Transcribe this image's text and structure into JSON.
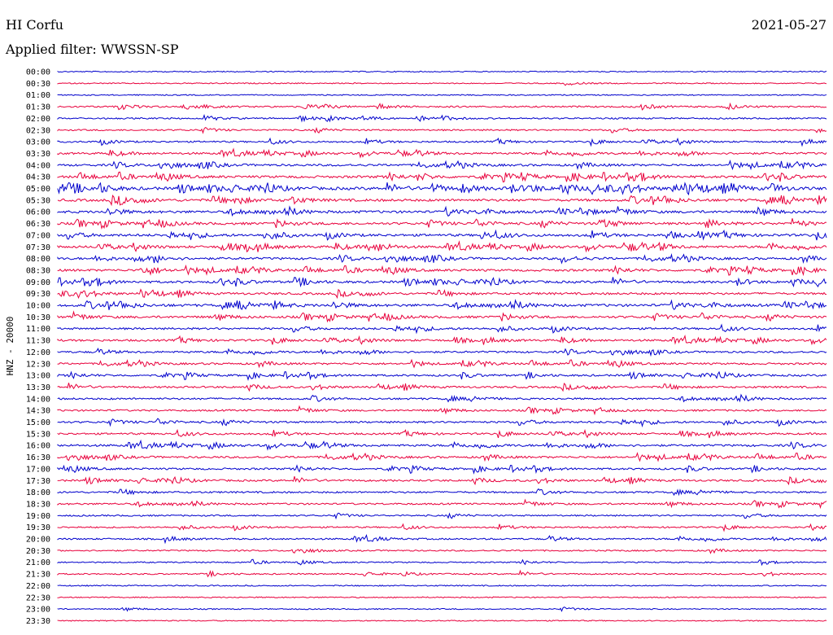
{
  "header": {
    "station": "HI Corfu",
    "date": "2021-05-27",
    "filter_label": "Applied filter: WWSSN-SP"
  },
  "chart_data": {
    "type": "line",
    "title": "HI Corfu",
    "subtitle": "Applied filter: WWSSN-SP",
    "ylabel": "HNZ - 20000",
    "xlabel": "",
    "date": "2021-05-27",
    "row_interval_minutes": 30,
    "row_labels": [
      "00:00",
      "00:30",
      "01:00",
      "01:30",
      "02:00",
      "02:30",
      "03:00",
      "03:30",
      "04:00",
      "04:30",
      "05:00",
      "05:30",
      "06:00",
      "06:30",
      "07:00",
      "07:30",
      "08:00",
      "08:30",
      "09:00",
      "09:30",
      "10:00",
      "10:30",
      "11:00",
      "11:30",
      "12:00",
      "12:30",
      "13:00",
      "13:30",
      "14:00",
      "14:30",
      "15:00",
      "15:30",
      "16:00",
      "16:30",
      "17:00",
      "17:30",
      "18:00",
      "18:30",
      "19:00",
      "19:30",
      "20:00",
      "20:30",
      "21:00",
      "21:30",
      "22:00",
      "22:30",
      "23:00",
      "23:30"
    ],
    "colors": [
      "#0000cc",
      "#e8003c"
    ],
    "activity": [
      0.02,
      0.03,
      0.03,
      0.25,
      0.18,
      0.2,
      0.25,
      0.4,
      0.45,
      0.55,
      0.75,
      0.6,
      0.6,
      0.55,
      0.55,
      0.55,
      0.5,
      0.5,
      0.5,
      0.45,
      0.6,
      0.5,
      0.4,
      0.4,
      0.35,
      0.35,
      0.35,
      0.35,
      0.35,
      0.3,
      0.35,
      0.35,
      0.45,
      0.4,
      0.35,
      0.35,
      0.3,
      0.3,
      0.2,
      0.2,
      0.25,
      0.15,
      0.1,
      0.12,
      0.06,
      0.04,
      0.02,
      0.02
    ],
    "grid": false
  }
}
